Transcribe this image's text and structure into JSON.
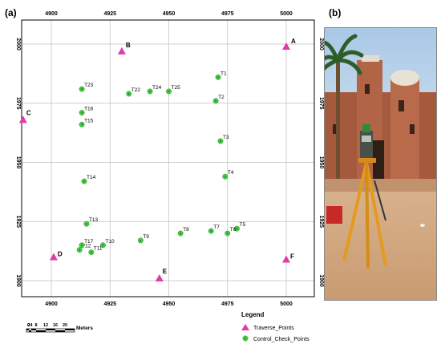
{
  "panel_a_label": "(a)",
  "panel_b_label": "(b)",
  "map": {
    "x_ticks": [
      "4900",
      "4925",
      "4950",
      "4975",
      "5000"
    ],
    "y_ticks": [
      "2000",
      "1975",
      "1950",
      "1925",
      "1900"
    ],
    "traverse_points": [
      {
        "label": "A",
        "x": 5000,
        "y": 1999
      },
      {
        "label": "B",
        "x": 4930,
        "y": 1997
      },
      {
        "label": "C",
        "x": 4888,
        "y": 1968
      },
      {
        "label": "D",
        "x": 4901,
        "y": 1910
      },
      {
        "label": "E",
        "x": 4946,
        "y": 1901
      },
      {
        "label": "F",
        "x": 5000,
        "y": 1909
      }
    ],
    "check_points": [
      {
        "label": "T1",
        "x": 4971,
        "y": 1986
      },
      {
        "label": "T2",
        "x": 4970,
        "y": 1976
      },
      {
        "label": "T3",
        "x": 4972,
        "y": 1959
      },
      {
        "label": "T4",
        "x": 4974,
        "y": 1944
      },
      {
        "label": "T5",
        "x": 4979,
        "y": 1922
      },
      {
        "label": "T6",
        "x": 4975,
        "y": 1920
      },
      {
        "label": "T7",
        "x": 4968,
        "y": 1921
      },
      {
        "label": "T8",
        "x": 4955,
        "y": 1920
      },
      {
        "label": "T9",
        "x": 4938,
        "y": 1917
      },
      {
        "label": "T10",
        "x": 4922,
        "y": 1915
      },
      {
        "label": "T11",
        "x": 4917,
        "y": 1912
      },
      {
        "label": "T12",
        "x": 4912,
        "y": 1913
      },
      {
        "label": "T13",
        "x": 4915,
        "y": 1924
      },
      {
        "label": "T14",
        "x": 4914,
        "y": 1942
      },
      {
        "label": "T15",
        "x": 4913,
        "y": 1966
      },
      {
        "label": "T16",
        "x": 4913,
        "y": 1971
      },
      {
        "label": "T17",
        "x": 4913,
        "y": 1915
      },
      {
        "label": "T22",
        "x": 4933,
        "y": 1979
      },
      {
        "label": "T23",
        "x": 4913,
        "y": 1981
      },
      {
        "label": "T24",
        "x": 4942,
        "y": 1980
      },
      {
        "label": "T25",
        "x": 4950,
        "y": 1980
      }
    ]
  },
  "legend": {
    "title": "Legend",
    "items": [
      {
        "symbol": "traverse",
        "label": "Traverse_Points"
      },
      {
        "symbol": "check",
        "label": "Control_Check_Points"
      }
    ]
  },
  "scale_bar": {
    "numbers": [
      "0",
      "2",
      "4",
      "8",
      "12",
      "16",
      "20"
    ],
    "unit": "Meters"
  },
  "colors": {
    "traverse": "#e23aa8",
    "check_fill": "#3dd43d",
    "check_dot": "#555555",
    "grid": "#bfbfbf"
  }
}
